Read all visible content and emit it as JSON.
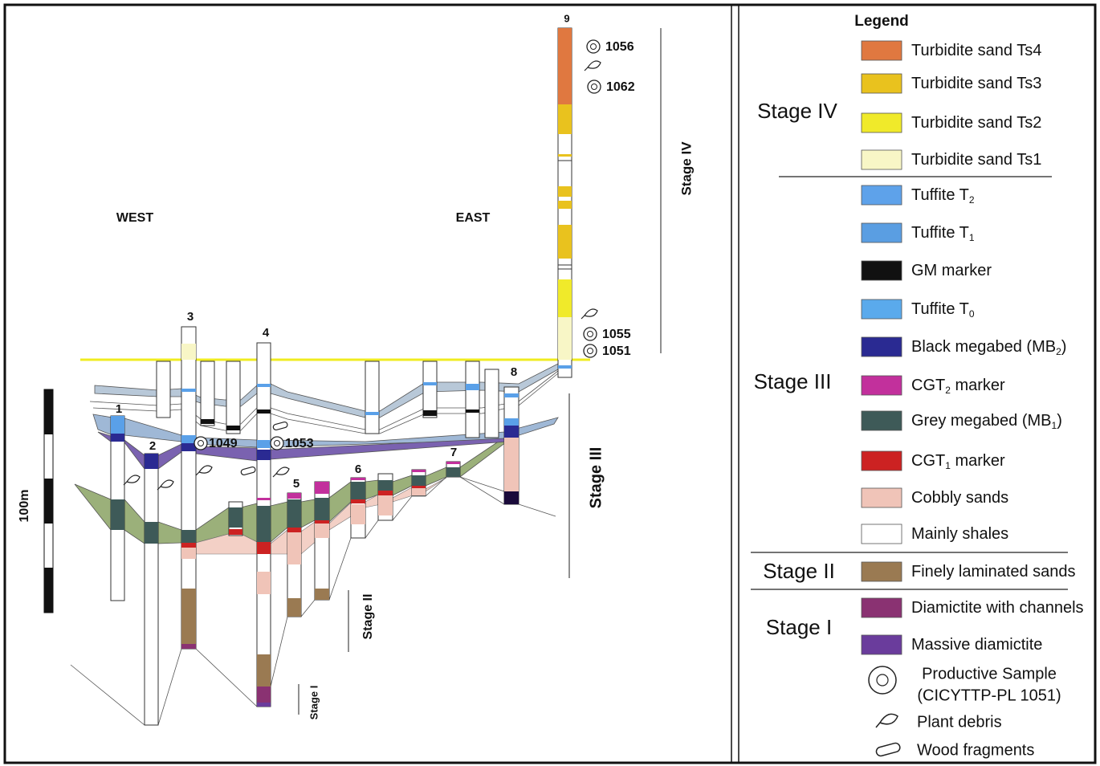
{
  "diagram": {
    "west": "WEST",
    "east": "EAST",
    "wells": [
      "1",
      "2",
      "3",
      "4",
      "5",
      "6",
      "7",
      "8",
      "9"
    ],
    "samples": [
      "1056",
      "1062",
      "1055",
      "1051",
      "1049",
      "1053"
    ],
    "stages": [
      "Stage IV",
      "Stage III",
      "Stage II",
      "Stage I"
    ],
    "scale": "100m"
  },
  "legend": {
    "title": "Legend",
    "groups": [
      {
        "stage": "Stage IV",
        "items": [
          {
            "label": "Turbidite sand Ts4",
            "color": "#e07840"
          },
          {
            "label": "Turbidite sand Ts3",
            "color": "#e9c21e"
          },
          {
            "label": "Turbidite sand Ts2",
            "color": "#f0ea2a"
          },
          {
            "label": "Turbidite sand Ts1",
            "color": "#f8f6c6"
          }
        ]
      },
      {
        "stage": "Stage III",
        "items": [
          {
            "label": "Tuffite T",
            "sub": "2",
            "color": "#5ea2ea"
          },
          {
            "label": "Tuffite T",
            "sub": "1",
            "color": "#5a9ee2"
          },
          {
            "label": "GM marker",
            "color": "#111111"
          },
          {
            "label": "Tuffite T",
            "sub": "0",
            "color": "#5aaaec"
          },
          {
            "label": "Black megabed (MB",
            "sub": "2",
            "suffix": ")",
            "color": "#2a2a92"
          },
          {
            "label": "CGT",
            "sub": "2",
            "suffix": " marker",
            "color": "#c2309c"
          },
          {
            "label": "Grey megabed (MB",
            "sub": "1",
            "suffix": ")",
            "color": "#3e5a58"
          },
          {
            "label": "CGT",
            "sub": "1",
            "suffix": " marker",
            "color": "#cc2222"
          },
          {
            "label": "Cobbly sands",
            "color": "#f0c4b8"
          },
          {
            "label": "Mainly shales",
            "color": "#ffffff"
          }
        ]
      },
      {
        "stage": "Stage II",
        "items": [
          {
            "label": "Finely laminated sands",
            "color": "#9a7a52"
          }
        ]
      },
      {
        "stage": "Stage I",
        "items": [
          {
            "label": "Diamictite with channels",
            "color": "#8a3272"
          },
          {
            "label": "Massive diamictite",
            "color": "#6a3c9c"
          }
        ]
      }
    ],
    "symbols": [
      {
        "lines": [
          "Productive Sample",
          "(CICYTTP-PL 1051)"
        ]
      },
      {
        "lines": [
          "Plant debris"
        ]
      },
      {
        "lines": [
          "Wood fragments"
        ]
      }
    ]
  }
}
